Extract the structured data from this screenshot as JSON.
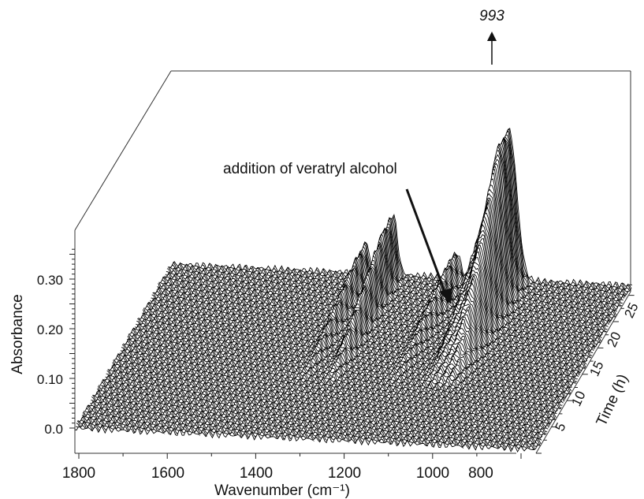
{
  "chart_data": {
    "type": "area",
    "plot_style": "3d-waterfall",
    "title": "",
    "xlabel": "Wavenumber (cm⁻¹)",
    "ylabel": "Absorbance",
    "zlabel": "Time (h)",
    "x_ticks": [
      "1800",
      "1600",
      "1400",
      "1200",
      "1000",
      "800"
    ],
    "y_ticks": [
      "0.0",
      "0.10",
      "0.20",
      "0.30"
    ],
    "z_ticks": [
      "5",
      "10",
      "15",
      "20",
      "25"
    ],
    "xlim": [
      1800,
      700
    ],
    "ylim": [
      0,
      0.36
    ],
    "zlim": [
      0,
      26
    ],
    "peak_label": "993",
    "annotation": "addition of veratryl alcohol",
    "addition_time_h": 9,
    "peaks": [
      {
        "center": 1335,
        "width": 12,
        "height": 0.06
      },
      {
        "center": 1270,
        "width": 14,
        "height": 0.12
      },
      {
        "center": 1120,
        "width": 15,
        "height": 0.05
      },
      {
        "center": 1030,
        "width": 18,
        "height": 0.12
      },
      {
        "center": 993,
        "width": 25,
        "height": 0.3
      }
    ],
    "series": [
      {
        "values_description": "",
        "time_range_h": [
          0,
          26
        ],
        "line_color": "#000000"
      }
    ]
  }
}
